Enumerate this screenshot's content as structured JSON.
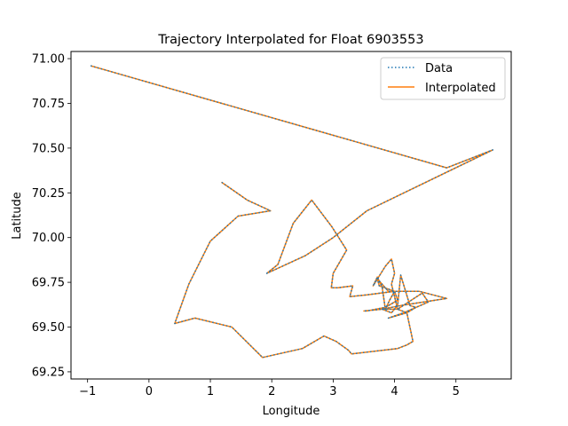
{
  "chart_data": {
    "type": "line",
    "title": "Trajectory Interpolated for Float 6903553",
    "xlabel": "Longitude",
    "ylabel": "Latitude",
    "xlim": [
      -1.27,
      5.9
    ],
    "ylim": [
      69.21,
      71.04
    ],
    "xticks": [
      -1,
      0,
      1,
      2,
      3,
      4,
      5
    ],
    "xtick_labels": [
      "−1",
      "0",
      "1",
      "2",
      "3",
      "4",
      "5"
    ],
    "yticks": [
      69.25,
      69.5,
      69.75,
      70.0,
      70.25,
      70.5,
      70.75,
      71.0
    ],
    "ytick_labels": [
      "69.25",
      "69.50",
      "69.75",
      "70.00",
      "70.25",
      "70.50",
      "70.75",
      "71.00"
    ],
    "grid": false,
    "legend_position": "top-right",
    "series": [
      {
        "name": "Data",
        "style": "dotted",
        "color": "#1f77b4",
        "x": [
          -0.95,
          4.85,
          5.6,
          3.55,
          3.0,
          2.55,
          1.92,
          2.1,
          2.35,
          2.65,
          2.98,
          3.22,
          3.0,
          2.97,
          3.08,
          3.32,
          3.27,
          3.55,
          4.0,
          3.92,
          3.85,
          3.8,
          3.72,
          3.65,
          3.85,
          3.95,
          4.0,
          3.95,
          4.05,
          3.8,
          3.5,
          3.55,
          3.85,
          4.05,
          4.0,
          3.75,
          3.72,
          3.9,
          4.4,
          4.85,
          4.1,
          3.8,
          3.95,
          4.05,
          4.1,
          4.25,
          4.35,
          4.2,
          4.05,
          4.45,
          4.55,
          4.15,
          3.9,
          4.2,
          4.3,
          4.2,
          4.05,
          3.3,
          3.25,
          3.05,
          2.85,
          2.5,
          1.85,
          1.35,
          0.75,
          0.42,
          0.65,
          1.0,
          1.45,
          1.98,
          1.6,
          1.18
        ],
        "y": [
          70.96,
          70.39,
          70.49,
          70.15,
          70.0,
          69.9,
          69.8,
          69.85,
          70.08,
          70.21,
          70.06,
          69.93,
          69.8,
          69.72,
          69.72,
          69.73,
          69.67,
          69.68,
          69.7,
          69.65,
          69.6,
          69.72,
          69.78,
          69.73,
          69.84,
          69.88,
          69.8,
          69.74,
          69.6,
          69.6,
          69.59,
          69.59,
          69.61,
          69.65,
          69.7,
          69.73,
          69.77,
          69.7,
          69.7,
          69.66,
          69.62,
          69.6,
          69.58,
          69.62,
          69.79,
          69.62,
          69.61,
          69.58,
          69.6,
          69.69,
          69.64,
          69.58,
          69.55,
          69.58,
          69.42,
          69.4,
          69.38,
          69.35,
          69.37,
          69.42,
          69.45,
          69.38,
          69.33,
          69.5,
          69.55,
          69.52,
          69.74,
          69.98,
          70.12,
          70.15,
          70.21,
          70.31
        ]
      },
      {
        "name": "Interpolated",
        "style": "solid",
        "color": "#ff7f0e",
        "x": [
          -0.95,
          4.85,
          5.6,
          3.55,
          3.0,
          2.55,
          1.92,
          2.1,
          2.35,
          2.65,
          2.98,
          3.22,
          3.0,
          2.97,
          3.08,
          3.32,
          3.27,
          3.55,
          4.0,
          3.92,
          3.85,
          3.8,
          3.72,
          3.65,
          3.85,
          3.95,
          4.0,
          3.95,
          4.05,
          3.8,
          3.5,
          3.55,
          3.85,
          4.05,
          4.0,
          3.75,
          3.72,
          3.9,
          4.4,
          4.85,
          4.1,
          3.8,
          3.95,
          4.05,
          4.1,
          4.25,
          4.35,
          4.2,
          4.05,
          4.45,
          4.55,
          4.15,
          3.9,
          4.2,
          4.3,
          4.2,
          4.05,
          3.3,
          3.25,
          3.05,
          2.85,
          2.5,
          1.85,
          1.35,
          0.75,
          0.42,
          0.65,
          1.0,
          1.45,
          1.98,
          1.6,
          1.18
        ],
        "y": [
          70.96,
          70.39,
          70.49,
          70.15,
          70.0,
          69.9,
          69.8,
          69.85,
          70.08,
          70.21,
          70.06,
          69.93,
          69.8,
          69.72,
          69.72,
          69.73,
          69.67,
          69.68,
          69.7,
          69.65,
          69.6,
          69.72,
          69.78,
          69.73,
          69.84,
          69.88,
          69.8,
          69.74,
          69.6,
          69.6,
          69.59,
          69.59,
          69.61,
          69.65,
          69.7,
          69.73,
          69.77,
          69.7,
          69.7,
          69.66,
          69.62,
          69.6,
          69.58,
          69.62,
          69.79,
          69.62,
          69.61,
          69.58,
          69.6,
          69.69,
          69.64,
          69.58,
          69.55,
          69.58,
          69.42,
          69.4,
          69.38,
          69.35,
          69.37,
          69.42,
          69.45,
          69.38,
          69.33,
          69.5,
          69.55,
          69.52,
          69.74,
          69.98,
          70.12,
          70.15,
          70.21,
          70.31
        ]
      }
    ]
  }
}
